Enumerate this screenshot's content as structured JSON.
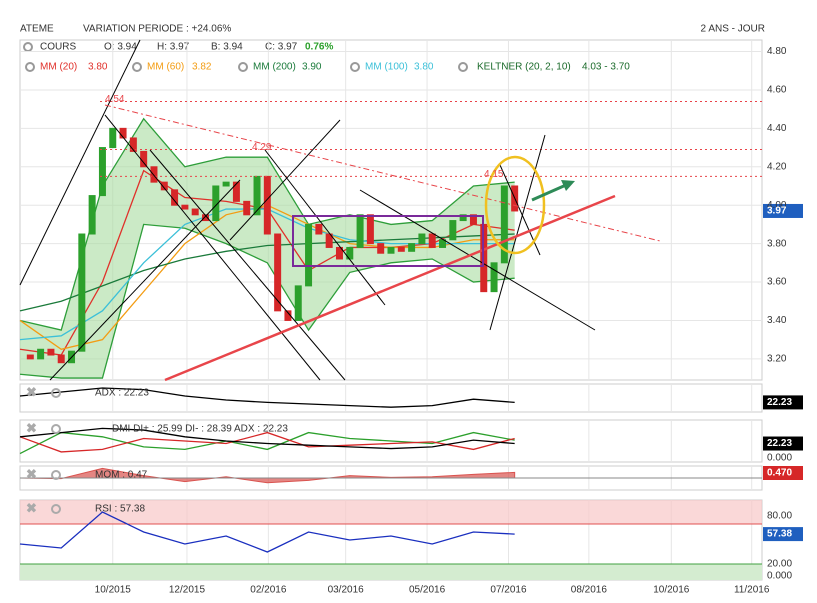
{
  "header": {
    "name": "ATEME",
    "variation": "VARIATION PERIODE : +24.06%",
    "period": "2 ANS - JOUR"
  },
  "legend": {
    "cours": "COURS",
    "o": "O: 3.94",
    "h": "H: 3.97",
    "b": "B: 3.94",
    "c": "C: 3.97",
    "change": "0.76%"
  },
  "chart_data": [
    {
      "type": "candlestick",
      "name": "main",
      "closes": [
        3.22,
        3.2,
        3.25,
        3.22,
        3.18,
        3.24,
        3.85,
        4.05,
        4.3,
        4.4,
        4.35,
        4.28,
        4.2,
        4.12,
        4.08,
        4.0,
        3.98,
        3.95,
        3.92,
        4.1,
        4.12,
        4.02,
        3.95,
        4.15,
        3.85,
        3.45,
        3.4,
        3.58,
        3.9,
        3.85,
        3.78,
        3.72,
        3.78,
        3.95,
        3.8,
        3.75,
        3.78,
        3.76,
        3.8,
        3.85,
        3.78,
        3.82,
        3.92,
        3.95,
        3.9,
        3.55,
        3.7,
        4.1,
        3.97
      ],
      "up_color": "#2ca02c",
      "down_color": "#d62728",
      "xlim": [
        0,
        72
      ],
      "xticks": [
        {
          "value": 9,
          "label": "10/2015"
        },
        {
          "value": 16.2,
          "label": "12/2015"
        },
        {
          "value": 24.1,
          "label": "02/2016"
        },
        {
          "value": 31.6,
          "label": "03/2016"
        },
        {
          "value": 39.5,
          "label": "05/2016"
        },
        {
          "value": 47.4,
          "label": "07/2016"
        },
        {
          "value": 55.2,
          "label": "08/2016"
        },
        {
          "value": 63.2,
          "label": "10/2016"
        },
        {
          "value": 71,
          "label": "11/2016"
        }
      ],
      "ylim": [
        3.09,
        4.86
      ],
      "yticks": [
        {
          "value": 3.2,
          "label": "3.20"
        },
        {
          "value": 3.4,
          "label": "3.40"
        },
        {
          "value": 3.6,
          "label": "3.60"
        },
        {
          "value": 3.8,
          "label": "3.80"
        },
        {
          "value": 4.0,
          "label": "4.00"
        },
        {
          "value": 4.2,
          "label": "4.20"
        },
        {
          "value": 4.4,
          "label": "4.40"
        },
        {
          "value": 4.6,
          "label": "4.60"
        },
        {
          "value": 4.8,
          "label": "4.80"
        }
      ],
      "grid": true,
      "levels": [
        {
          "value": 4.54,
          "label": "4.54"
        },
        {
          "value": 4.29,
          "label": "4.29"
        },
        {
          "value": 4.15,
          "label": "4.15"
        }
      ],
      "last_label": "3.97",
      "keltner": {
        "name": "KELTNER (20, 2, 10)",
        "legend_value": "4.03 - 3.70",
        "color": "#2e9e3a",
        "x": [
          0,
          4,
          8,
          12,
          16,
          20,
          24,
          28,
          32,
          36,
          40,
          44,
          48
        ],
        "upper": [
          3.4,
          3.35,
          4.1,
          4.45,
          4.2,
          4.25,
          4.25,
          3.9,
          3.95,
          3.9,
          3.92,
          4.1,
          4.12
        ],
        "lower": [
          3.12,
          3.1,
          3.1,
          3.9,
          3.88,
          3.8,
          3.7,
          3.35,
          3.65,
          3.7,
          3.72,
          3.6,
          3.62
        ]
      },
      "series": [
        {
          "name": "MM (20)",
          "legend_value": "3.80",
          "color": "#e0302a",
          "x": [
            0,
            4,
            8,
            12,
            16,
            20,
            24,
            28,
            32,
            36,
            40,
            44,
            48
          ],
          "values": [
            3.25,
            3.22,
            3.6,
            4.18,
            4.04,
            4.02,
            3.98,
            3.66,
            3.78,
            3.78,
            3.8,
            3.9,
            3.87
          ]
        },
        {
          "name": "MM (60)",
          "legend_value": "3.82",
          "color": "#f39c12",
          "x": [
            0,
            4,
            8,
            12,
            16,
            20,
            24,
            28,
            32,
            36,
            40,
            44,
            48
          ],
          "values": [
            3.4,
            3.25,
            3.3,
            3.55,
            3.8,
            3.95,
            4.0,
            3.9,
            3.8,
            3.78,
            3.78,
            3.82,
            3.82
          ]
        },
        {
          "name": "MM (200)",
          "legend_value": "3.90",
          "color": "#1a7a3a",
          "x": [
            0,
            4,
            8,
            12,
            16,
            20,
            24,
            28,
            32,
            36,
            40,
            44,
            48
          ],
          "values": [
            3.45,
            3.5,
            3.58,
            3.66,
            3.72,
            3.76,
            3.79,
            3.8,
            3.81,
            3.82,
            3.83,
            3.84,
            3.85
          ]
        },
        {
          "name": "MM (100)",
          "legend_value": "3.80",
          "color": "#3cc0d8",
          "x": [
            0,
            4,
            8,
            12,
            16,
            20,
            24,
            28,
            32,
            36,
            40,
            44,
            48
          ],
          "values": [
            3.3,
            3.32,
            3.45,
            3.7,
            3.9,
            3.98,
            3.98,
            3.88,
            3.82,
            3.8,
            3.8,
            3.8,
            3.8
          ]
        }
      ]
    },
    {
      "type": "line",
      "name": "adx",
      "label": "ADX : 22.23",
      "last_label": "22.23",
      "box_color": "#000000",
      "ylim": [
        10,
        45
      ],
      "series": [
        {
          "color": "#000000",
          "x": [
            0,
            4,
            8,
            12,
            16,
            20,
            24,
            28,
            32,
            36,
            40,
            44,
            48
          ],
          "values": [
            30,
            35,
            40,
            38,
            30,
            25,
            22,
            20,
            18,
            16,
            18,
            26,
            22
          ]
        }
      ]
    },
    {
      "type": "line",
      "name": "dmi",
      "label": "DMI DI+ : 25.99 DI- : 28.39 ADX : 22.23",
      "last_label": "22.23",
      "box_color": "#000000",
      "ylim": [
        0,
        50
      ],
      "yticks": [
        {
          "value": 0,
          "label": "0.000"
        }
      ],
      "series": [
        {
          "color": "#2ca02c",
          "x": [
            0,
            4,
            8,
            12,
            16,
            20,
            24,
            28,
            32,
            36,
            40,
            44,
            48
          ],
          "values": [
            10,
            35,
            30,
            18,
            15,
            25,
            15,
            35,
            28,
            25,
            22,
            35,
            26
          ]
        },
        {
          "color": "#d62728",
          "x": [
            0,
            4,
            8,
            12,
            16,
            20,
            24,
            28,
            32,
            36,
            40,
            44,
            48
          ],
          "values": [
            30,
            12,
            15,
            28,
            25,
            22,
            35,
            18,
            20,
            22,
            24,
            15,
            28
          ]
        },
        {
          "color": "#000000",
          "x": [
            0,
            4,
            8,
            12,
            16,
            20,
            24,
            28,
            32,
            36,
            40,
            44,
            48
          ],
          "values": [
            30,
            35,
            40,
            38,
            30,
            25,
            22,
            20,
            18,
            16,
            18,
            26,
            22
          ]
        }
      ]
    },
    {
      "type": "area",
      "name": "mom",
      "label": "MOM : 0.47",
      "last_label": "0.470",
      "box_color": "#d62728",
      "ylim": [
        -1,
        1
      ],
      "series": [
        {
          "color": "#d9534f",
          "x": [
            0,
            4,
            8,
            12,
            16,
            20,
            24,
            28,
            32,
            36,
            40,
            44,
            48
          ],
          "values": [
            0,
            -0.05,
            0.8,
            0.2,
            -0.3,
            0.1,
            -0.4,
            -0.2,
            0.2,
            0.05,
            0.1,
            0.3,
            0.47
          ]
        }
      ]
    },
    {
      "type": "line",
      "name": "rsi",
      "label": "RSI : 57.38",
      "last_label": "57.38",
      "box_color": "#1f5fbf",
      "ylim": [
        0,
        100
      ],
      "yticks": [
        {
          "value": 80,
          "label": "80.00"
        },
        {
          "value": 20,
          "label": "20.00"
        },
        {
          "value": 0,
          "label": "0.000"
        }
      ],
      "series": [
        {
          "color": "#1a2fbf",
          "x": [
            0,
            4,
            8,
            12,
            16,
            20,
            24,
            28,
            32,
            36,
            40,
            44,
            48
          ],
          "values": [
            45,
            40,
            85,
            60,
            45,
            55,
            35,
            60,
            50,
            55,
            45,
            60,
            57.38
          ]
        }
      ]
    }
  ]
}
